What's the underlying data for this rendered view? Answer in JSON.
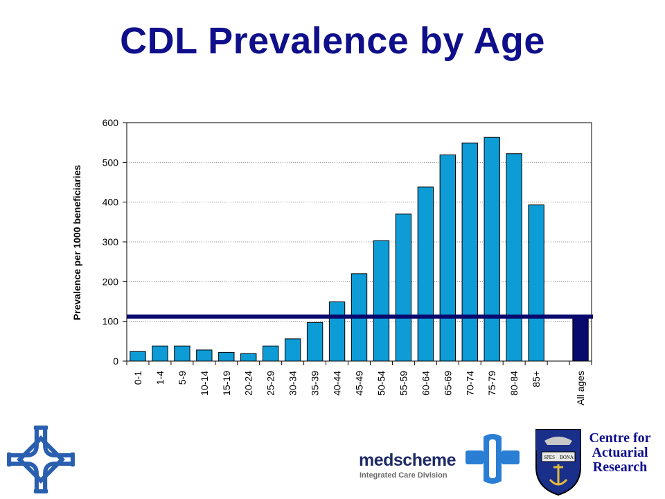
{
  "title": "CDL Prevalence by Age",
  "chart_data": {
    "type": "bar",
    "ylabel": "Prevalence per 1000 beneficiaries",
    "ylim": [
      0,
      600
    ],
    "yticks": [
      0,
      100,
      200,
      300,
      400,
      500,
      600
    ],
    "grid": true,
    "categories": [
      "0-1",
      "1-4",
      "5-9",
      "10-14",
      "15-19",
      "20-24",
      "25-29",
      "30-34",
      "35-39",
      "40-44",
      "45-49",
      "50-54",
      "55-59",
      "60-64",
      "65-69",
      "70-74",
      "75-79",
      "80-84",
      "85+",
      "",
      "All ages"
    ],
    "values": [
      24,
      38,
      38,
      28,
      22,
      19,
      38,
      56,
      97,
      149,
      220,
      303,
      370,
      438,
      519,
      549,
      563,
      522,
      393,
      null,
      110
    ],
    "reference_line": {
      "value": 112,
      "color": "#0a0a6e"
    },
    "bar_color": "#0d9cd6",
    "highlight_bar_color": "#0a0a6e"
  },
  "logos": {
    "medscheme_name": "medscheme",
    "medscheme_division": "Integrated Care Division",
    "car_text": [
      "Centre for",
      "Actuarial",
      "Research"
    ],
    "crest_motto": [
      "SPES",
      "BONA"
    ]
  },
  "colors": {
    "title": "#0f0f8c",
    "bar": "#0d9cd6",
    "reference_line": "#0a0a6e",
    "logo_blue": "#2a5fb0"
  },
  "icons": [
    "cross-emblem-icon",
    "medscheme-logo-icon",
    "university-crest-icon"
  ]
}
